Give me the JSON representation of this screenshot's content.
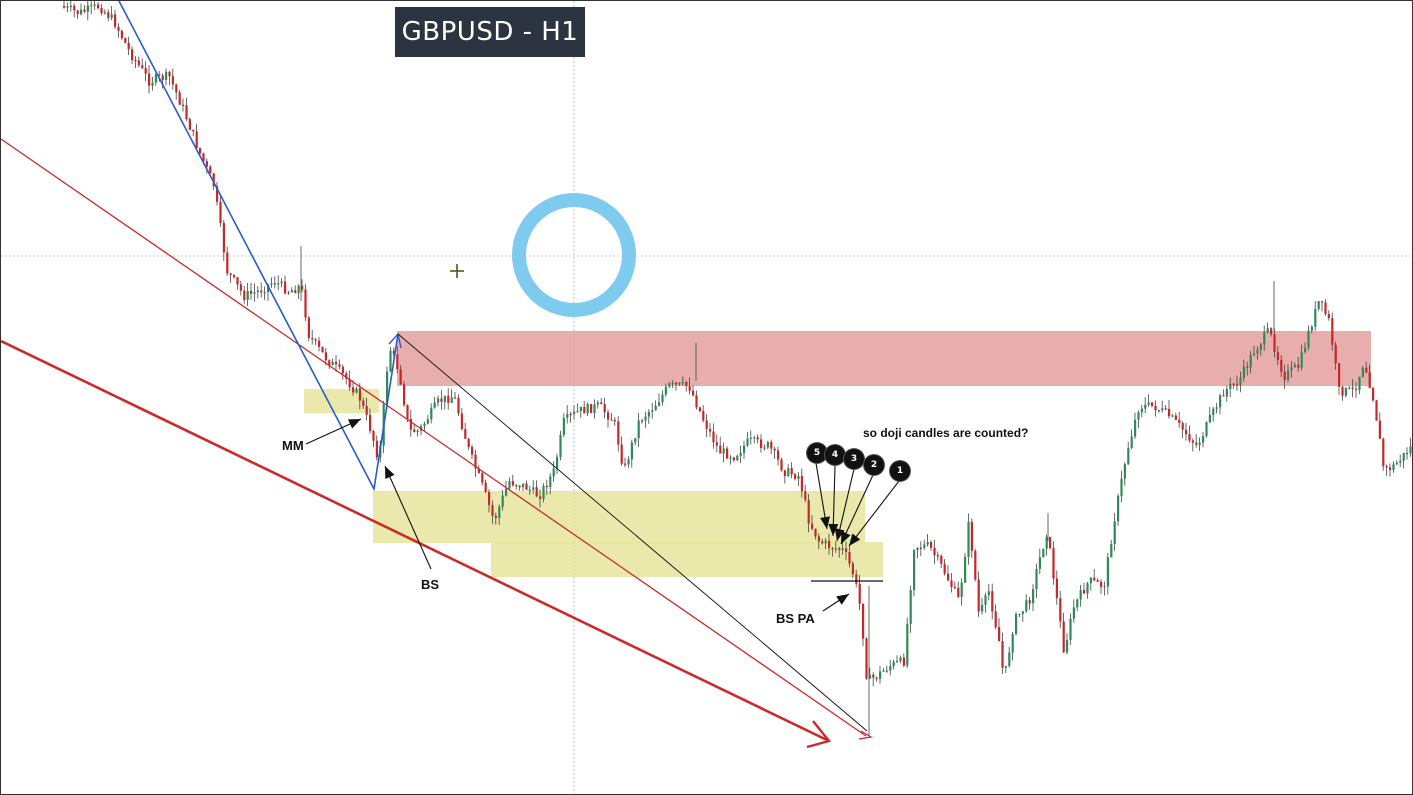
{
  "header": {
    "title": "GBPUSD - H1"
  },
  "annotations": {
    "mm": "MM",
    "bs": "BS",
    "bs_pa": "BS PA",
    "question": "so doji candles are counted?",
    "counts": [
      "5",
      "4",
      "3",
      "2",
      "1"
    ]
  },
  "colors": {
    "bull": "#2e8b57",
    "bear": "#c62828",
    "wick": "#444444",
    "supply_zone": "#e29a9a",
    "demand_zone": "#e3e08e",
    "trendline_red": "#cc2a2a",
    "trendline_blue": "#2a5bcc",
    "cursor_circle": "#7ecbef"
  },
  "chart_data": {
    "type": "candlestick",
    "symbol": "GBPUSD",
    "timeframe": "H1",
    "grid": false,
    "legend": "none"
  }
}
